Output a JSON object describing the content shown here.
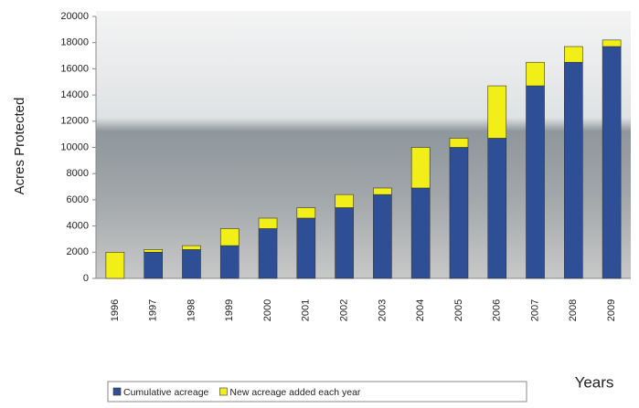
{
  "chart_data": {
    "type": "bar",
    "stacked": true,
    "ylabel": "Acres Protected",
    "xlabel": "Years",
    "categories": [
      "1996",
      "1997",
      "1998",
      "1999",
      "2000",
      "2001",
      "2002",
      "2003",
      "2004",
      "2005",
      "2006",
      "2007",
      "2008",
      "2009"
    ],
    "series": [
      {
        "name": "Cumulative acreage",
        "color": "#2e4f95",
        "values": [
          0,
          2000,
          2200,
          2500,
          3800,
          4600,
          5400,
          6400,
          6900,
          10000,
          10700,
          14700,
          16500,
          17700
        ]
      },
      {
        "name": "New acreage added each year",
        "color": "#f2ee18",
        "values": [
          2000,
          200,
          300,
          1300,
          800,
          800,
          1000,
          500,
          3100,
          700,
          4000,
          1800,
          1200,
          500
        ]
      }
    ],
    "ylim": [
      0,
      20000
    ],
    "yticks": [
      0,
      2000,
      4000,
      6000,
      8000,
      10000,
      12000,
      14000,
      16000,
      18000,
      20000
    ],
    "grid": false
  }
}
